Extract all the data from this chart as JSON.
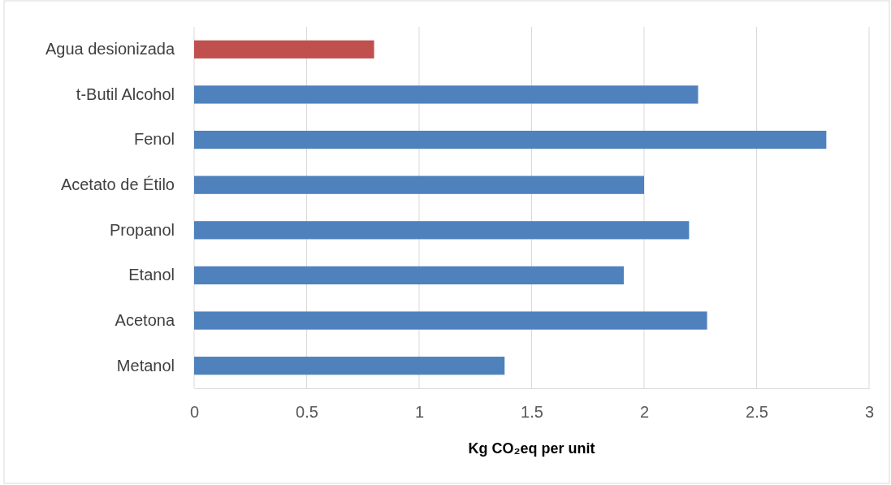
{
  "chart_data": {
    "type": "bar",
    "orientation": "horizontal",
    "categories": [
      "Agua desionizada",
      "t-Butil Alcohol",
      "Fenol",
      "Acetato de Étilo",
      "Propanol",
      "Etanol",
      "Acetona",
      "Metanol"
    ],
    "values": [
      0.8,
      2.24,
      2.81,
      2.0,
      2.2,
      1.91,
      2.28,
      1.38
    ],
    "colors": [
      "#c0504d",
      "#4f81bd",
      "#4f81bd",
      "#4f81bd",
      "#4f81bd",
      "#4f81bd",
      "#4f81bd",
      "#4f81bd"
    ],
    "xlim": [
      0,
      3
    ],
    "xticks": [
      0,
      0.5,
      1,
      1.5,
      2,
      2.5,
      3
    ],
    "grid": "x",
    "xlabel": "Kg CO₂eq per unit"
  }
}
